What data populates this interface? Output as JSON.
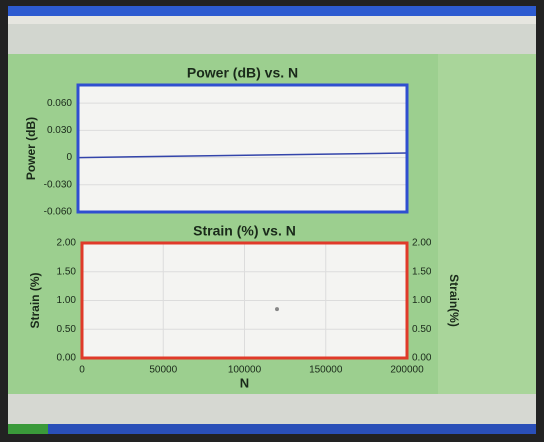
{
  "chart_data": [
    {
      "type": "line",
      "title": "Power (dB) vs. N",
      "y_label": "Power (dB)",
      "x": [
        0,
        200000
      ],
      "series": [
        {
          "color": "#3344aa",
          "values": [
            0,
            0.005
          ]
        }
      ],
      "xlim": [
        0,
        200000
      ],
      "ylim": [
        -0.06,
        0.08
      ],
      "yticks": [
        {
          "value": 0.06,
          "label": "0.060"
        },
        {
          "value": 0.03,
          "label": "0.030"
        },
        0,
        {
          "value": -0.03,
          "label": "-0.030"
        },
        {
          "value": -0.06,
          "label": "-0.060"
        }
      ],
      "grid": true,
      "frame_color": "#2f4fd0"
    },
    {
      "type": "scatter",
      "title": "Strain (%) vs. N",
      "x_label": "N",
      "y_label": "Strain (%)",
      "y2_label": "Strain(%)",
      "x": [
        120000
      ],
      "series": [
        {
          "color": "#888888",
          "values": [
            0.85
          ]
        }
      ],
      "xlim": [
        0,
        200000
      ],
      "xticks": [
        0,
        50000,
        100000,
        150000,
        200000
      ],
      "ylim": [
        0,
        2
      ],
      "yticks": [
        {
          "value": 2,
          "label": "2.00"
        },
        {
          "value": 1.5,
          "label": "1.50"
        },
        {
          "value": 1,
          "label": "1.00"
        },
        {
          "value": 0.5,
          "label": "0.50"
        },
        {
          "value": 0,
          "label": "0.00"
        }
      ],
      "y2lim": [
        0,
        2
      ],
      "y2ticks": [
        {
          "value": 2,
          "label": "2.00"
        },
        {
          "value": 1.5,
          "label": "1.50"
        },
        {
          "value": 1,
          "label": "1.00"
        },
        {
          "value": 0.5,
          "label": "0.50"
        },
        {
          "value": 0,
          "label": "0.00"
        }
      ],
      "grid": true,
      "frame_color": "#e03a2a"
    }
  ]
}
